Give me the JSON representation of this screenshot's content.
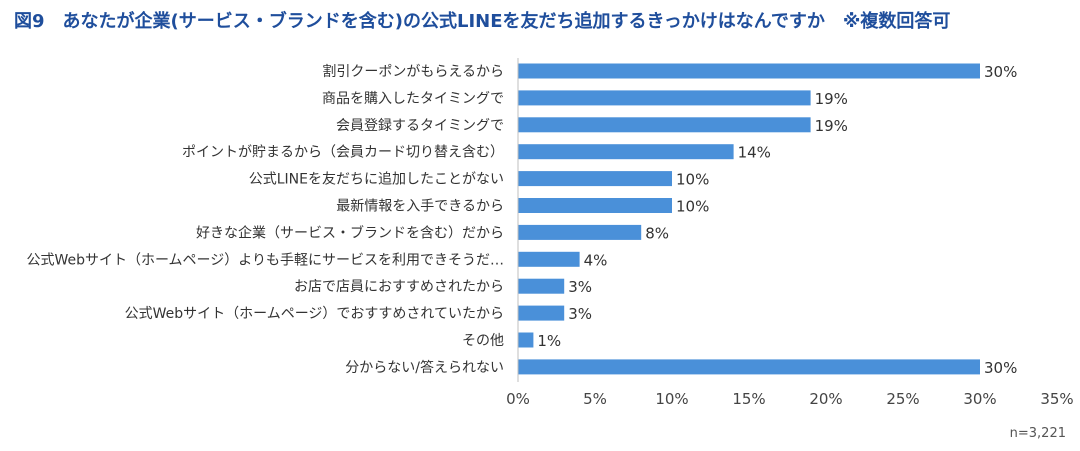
{
  "chart_data": {
    "type": "bar",
    "orientation": "horizontal",
    "title": "図9　あなたが企業(サービス・ブランドを含む)の公式LINEを友だち追加するきっかけはなんですか　※複数回答可",
    "categories": [
      "割引クーポンがもらえるから",
      "商品を購入したタイミングで",
      "会員登録するタイミングで",
      "ポイントが貯まるから（会員カード切り替え含む）",
      "公式LINEを友だちに追加したことがない",
      "最新情報を入手できるから",
      "好きな企業（サービス・ブランドを含む）だから",
      "公式Webサイト（ホームページ）よりも手軽にサービスを利用できそうだ…",
      "お店で店員におすすめされたから",
      "公式Webサイト（ホームページ）でおすすめされていたから",
      "その他",
      "分からない/答えられない"
    ],
    "values": [
      30,
      19,
      19,
      14,
      10,
      10,
      8,
      4,
      3,
      3,
      1,
      30
    ],
    "value_labels": [
      "30%",
      "19%",
      "19%",
      "14%",
      "10%",
      "10%",
      "8%",
      "4%",
      "3%",
      "3%",
      "1%",
      "30%"
    ],
    "x_ticks": [
      0,
      5,
      10,
      15,
      20,
      25,
      30,
      35
    ],
    "x_tick_labels": [
      "0%",
      "5%",
      "10%",
      "15%",
      "20%",
      "25%",
      "30%",
      "35%"
    ],
    "xlim": [
      0,
      35
    ],
    "xlabel": "",
    "ylabel": "",
    "grid": false,
    "bar_color": "#4a90d9",
    "note": "n=3,221"
  },
  "colors": {
    "title": "#1f4e9c",
    "bar": "#4a90d9",
    "axis": "#bfbfbf",
    "text": "#333333"
  }
}
